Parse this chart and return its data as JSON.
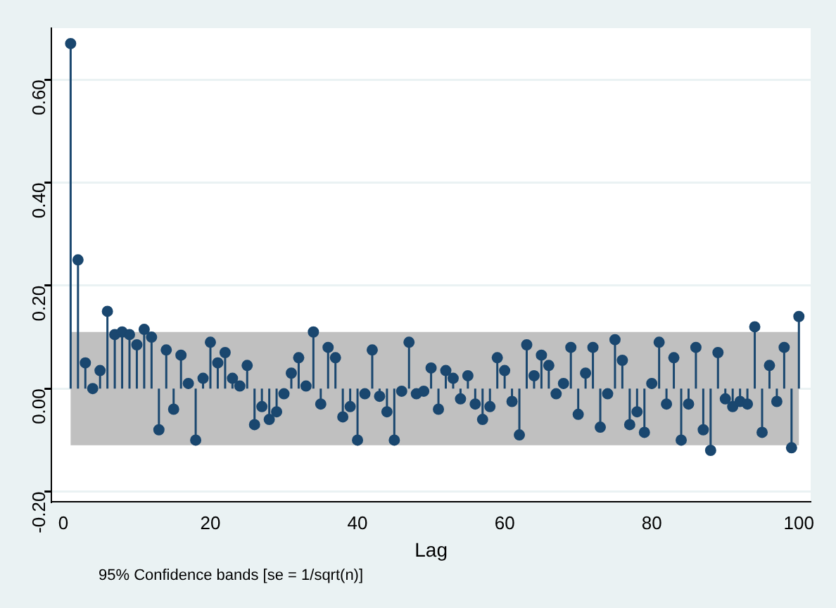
{
  "chart_data": {
    "type": "lollipop",
    "xlabel": "Lag",
    "annotations": [
      "95% Confidence bands [se = 1/sqrt(n)]"
    ],
    "x": [
      1,
      2,
      3,
      4,
      5,
      6,
      7,
      8,
      9,
      10,
      11,
      12,
      13,
      14,
      15,
      16,
      17,
      18,
      19,
      20,
      21,
      22,
      23,
      24,
      25,
      26,
      27,
      28,
      29,
      30,
      31,
      32,
      33,
      34,
      35,
      36,
      37,
      38,
      39,
      40,
      41,
      42,
      43,
      44,
      45,
      46,
      47,
      48,
      49,
      50,
      51,
      52,
      53,
      54,
      55,
      56,
      57,
      58,
      59,
      60,
      61,
      62,
      63,
      64,
      65,
      66,
      67,
      68,
      69,
      70,
      71,
      72,
      73,
      74,
      75,
      76,
      77,
      78,
      79,
      80,
      81,
      82,
      83,
      84,
      85,
      86,
      87,
      88,
      89,
      90,
      91,
      92,
      93,
      94,
      95,
      96,
      97,
      98,
      99,
      100
    ],
    "values": [
      0.67,
      0.25,
      0.05,
      0.0,
      0.035,
      0.15,
      0.105,
      0.11,
      0.105,
      0.085,
      0.115,
      0.1,
      -0.08,
      0.075,
      -0.04,
      0.065,
      0.01,
      -0.1,
      0.02,
      0.09,
      0.05,
      0.07,
      0.02,
      0.005,
      0.045,
      -0.07,
      -0.035,
      -0.06,
      -0.045,
      -0.01,
      0.03,
      0.06,
      0.005,
      0.11,
      -0.03,
      0.08,
      0.06,
      -0.055,
      -0.035,
      -0.1,
      -0.01,
      0.075,
      -0.015,
      -0.045,
      -0.1,
      -0.005,
      0.09,
      -0.01,
      -0.005,
      0.04,
      -0.04,
      0.035,
      0.02,
      -0.02,
      0.025,
      -0.03,
      -0.06,
      -0.035,
      0.06,
      0.035,
      -0.025,
      -0.09,
      0.085,
      0.025,
      0.065,
      0.045,
      -0.01,
      0.01,
      0.08,
      -0.05,
      0.03,
      0.08,
      -0.075,
      -0.01,
      0.095,
      0.055,
      -0.07,
      -0.045,
      -0.085,
      0.01,
      0.09,
      -0.03,
      0.06,
      -0.1,
      -0.03,
      0.08,
      -0.08,
      -0.12,
      0.07,
      -0.02,
      -0.035,
      -0.025,
      -0.03,
      0.12,
      -0.085,
      0.045,
      -0.025,
      0.08,
      -0.115,
      0.14
    ],
    "color": "#1a476f",
    "bands": [
      {
        "axis": "y",
        "from": -0.11,
        "to": 0.11,
        "color": "#c0c0c0"
      }
    ],
    "xlim": [
      -1.6,
      101.6
    ],
    "xticks": [
      0,
      20,
      40,
      60,
      80,
      100
    ],
    "ylim": [
      -0.22,
      0.7
    ],
    "yticks": [
      {
        "value": -0.2,
        "label": "-0.20"
      },
      {
        "value": 0,
        "label": "0.00"
      },
      {
        "value": 0.2,
        "label": "0.20"
      },
      {
        "value": 0.4,
        "label": "0.40"
      },
      {
        "value": 0.6,
        "label": "0.60"
      }
    ],
    "grid": "y",
    "legend": false,
    "marker": "circle"
  }
}
